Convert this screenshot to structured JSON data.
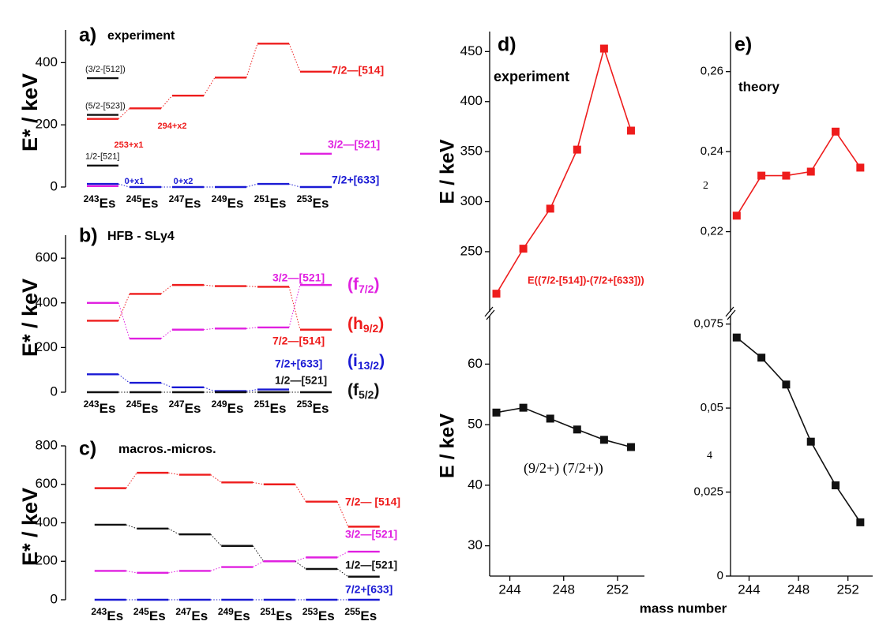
{
  "chart_data": [
    {
      "type": "level_scheme",
      "label": "a)",
      "title": "experiment",
      "ylabel": "E* / keV",
      "categories": [
        "243",
        "245",
        "247",
        "249",
        "251",
        "253"
      ],
      "element_symbol": "Es",
      "ylim": [
        0,
        505
      ],
      "yticks": [
        0,
        200,
        400
      ],
      "series": [
        {
          "name": "7/2—[514]",
          "color": "#ee1c1c",
          "values": [
            219,
            253,
            294,
            352,
            461,
            371
          ]
        },
        {
          "name": "3/2—[521]",
          "color": "#e020e0",
          "values": [
            3,
            null,
            null,
            null,
            null,
            107
          ]
        },
        {
          "name": "7/2+[633]",
          "color": "#1a1ad4",
          "values": [
            10,
            0,
            0,
            0,
            10,
            0
          ]
        },
        {
          "name": "(3/2-[512])",
          "color": "#111111",
          "values": [
            350,
            null,
            null,
            null,
            null,
            null
          ]
        },
        {
          "name": "(5/2-[523])",
          "color": "#111111",
          "values": [
            232,
            null,
            null,
            null,
            null,
            null
          ]
        },
        {
          "name": "1/2-[521]",
          "color": "#111111",
          "values": [
            69,
            null,
            null,
            null,
            null,
            null
          ]
        }
      ],
      "annotations": [
        {
          "text": "253+x1",
          "color": "#ee1c1c"
        },
        {
          "text": "294+x2",
          "color": "#ee1c1c"
        },
        {
          "text": "0+x1",
          "color": "#1a1ad4"
        },
        {
          "text": "0+x2",
          "color": "#1a1ad4"
        }
      ]
    },
    {
      "type": "level_scheme",
      "label": "b)",
      "title": "HFB - SLy4",
      "ylabel": "E* / keV",
      "categories": [
        "243",
        "245",
        "247",
        "249",
        "251",
        "253"
      ],
      "element_symbol": "Es",
      "ylim": [
        0,
        703
      ],
      "yticks": [
        0,
        200,
        400,
        600
      ],
      "series": [
        {
          "name": "3/2—[521]",
          "color": "#e020e0",
          "values": [
            400,
            240,
            280,
            285,
            290,
            480
          ]
        },
        {
          "name": "7/2—[514]",
          "color": "#ee1c1c",
          "values": [
            320,
            440,
            480,
            475,
            472,
            280
          ]
        },
        {
          "name": "7/2+[633]",
          "color": "#1a1ad4",
          "values": [
            80,
            42,
            22,
            5,
            12,
            null
          ]
        },
        {
          "name": "1/2—[521]",
          "color": "#111111",
          "values": [
            0,
            0,
            0,
            0,
            0,
            0
          ]
        }
      ],
      "shells": [
        {
          "orbital": "(f",
          "j": "7/2",
          "close": ")",
          "color": "#e020e0"
        },
        {
          "orbital": "(h",
          "j": "9/2",
          "close": ")",
          "color": "#ee1c1c"
        },
        {
          "orbital": "(i",
          "j": "13/2",
          "close": ")",
          "color": "#1a1ad4"
        },
        {
          "orbital": "(f",
          "j": "5/2",
          "close": ")",
          "color": "#111111"
        }
      ]
    },
    {
      "type": "level_scheme",
      "label": "c)",
      "title": "macros.-micros.",
      "ylabel": "E* / keV",
      "categories": [
        "243",
        "245",
        "247",
        "249",
        "251",
        "253",
        "255"
      ],
      "element_symbol": "Es",
      "ylim": [
        0,
        800
      ],
      "yticks": [
        0,
        200,
        400,
        600,
        800
      ],
      "series": [
        {
          "name": "7/2— [514]",
          "color": "#ee1c1c",
          "values": [
            580,
            660,
            650,
            610,
            600,
            510,
            380
          ]
        },
        {
          "name": "1/2—[521]",
          "color": "#111111",
          "values": [
            390,
            370,
            340,
            280,
            200,
            160,
            120
          ]
        },
        {
          "name": "3/2—[521]",
          "color": "#e020e0",
          "values": [
            150,
            140,
            150,
            170,
            200,
            220,
            250
          ]
        },
        {
          "name": "7/2+[633]",
          "color": "#1a1ad4",
          "values": [
            0,
            0,
            0,
            0,
            0,
            0,
            0
          ]
        }
      ]
    },
    {
      "type": "line",
      "label": "d)",
      "title": "experiment",
      "xlabel": "mass number",
      "x": [
        243,
        245,
        247,
        249,
        251,
        253
      ],
      "xlim": [
        242.5,
        254
      ],
      "xticks": [
        244,
        248,
        252
      ],
      "segments": [
        {
          "ylabel": "E / keV",
          "ylim": [
            190,
            470
          ],
          "yticks": [
            250,
            300,
            350,
            400,
            450
          ],
          "series": [
            {
              "name": "E((7/2-[514])-(7/2+[633]))",
              "color": "#ee1c1c",
              "values": [
                208,
                253,
                293,
                352,
                453,
                371
              ]
            }
          ]
        },
        {
          "ylabel": "E / keV",
          "ylim": [
            25,
            68
          ],
          "yticks": [
            30,
            40,
            50,
            60
          ],
          "series": [
            {
              "color": "#111111",
              "values": [
                52,
                52.8,
                51,
                49.2,
                47.5,
                46.3
              ]
            }
          ],
          "annotations": [
            "(9/2+)   (7/2+))"
          ]
        }
      ]
    },
    {
      "type": "line",
      "label": "e)",
      "title": "theory",
      "x": [
        243,
        245,
        247,
        249,
        251,
        253
      ],
      "xlim": [
        242.5,
        254
      ],
      "xticks": [
        244,
        248,
        252
      ],
      "segments": [
        {
          "ylim": [
            0.2,
            0.27
          ],
          "yticks": [
            {
              "value": 0.22,
              "label": "0,22"
            },
            {
              "value": 0.24,
              "label": "0,24"
            },
            {
              "value": 0.26,
              "label": "0,26"
            }
          ],
          "series": [
            {
              "color": "#ee1c1c",
              "values": [
                0.224,
                0.234,
                0.234,
                0.235,
                0.245,
                0.236
              ]
            }
          ],
          "annotations": [
            "2"
          ]
        },
        {
          "ylim": [
            0,
            0.0775
          ],
          "yticks": [
            0,
            {
              "value": 0.025,
              "label": "0,025"
            },
            {
              "value": 0.05,
              "label": "0,05"
            },
            {
              "value": 0.075,
              "label": "0,075"
            }
          ],
          "series": [
            {
              "color": "#111111",
              "values": [
                0.071,
                0.065,
                0.057,
                0.04,
                0.027,
                0.016
              ]
            }
          ],
          "annotations": [
            "4"
          ]
        }
      ]
    }
  ]
}
